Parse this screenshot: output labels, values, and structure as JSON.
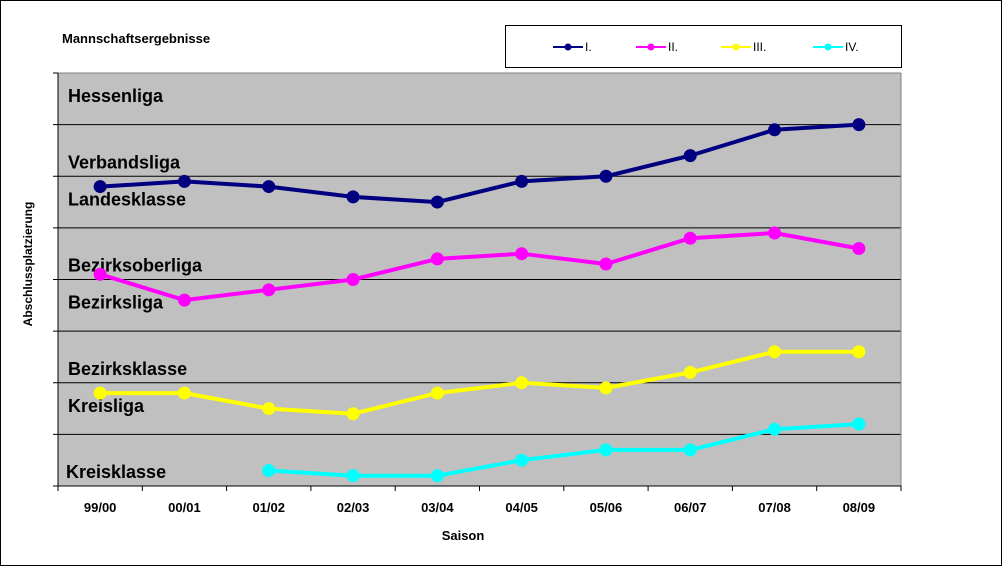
{
  "chart_data": {
    "type": "line",
    "title": "Mannschaftsergebnisse",
    "xlabel": "Saison",
    "ylabel": "Abschlussplatzierung",
    "categories": [
      "99/00",
      "00/01",
      "01/02",
      "02/03",
      "03/04",
      "04/05",
      "05/06",
      "06/07",
      "07/08",
      "08/09"
    ],
    "ylim": [
      0,
      8
    ],
    "grid": true,
    "legend_position": "top-right",
    "bands": [
      "Hessenliga",
      "Verbandsliga",
      "Landesklasse",
      "Bezirksoberliga",
      "Bezirksliga",
      "Bezirksklasse",
      "Kreisliga",
      "Kreisklasse"
    ],
    "series": [
      {
        "name": "I.",
        "color": "#000080",
        "values": [
          5.8,
          5.9,
          5.8,
          5.6,
          5.5,
          5.9,
          6.0,
          6.4,
          6.9,
          7.0
        ]
      },
      {
        "name": "II.",
        "color": "#ff00ff",
        "values": [
          4.1,
          3.6,
          3.8,
          4.0,
          4.4,
          4.5,
          4.3,
          4.8,
          4.9,
          4.6
        ]
      },
      {
        "name": "III.",
        "color": "#ffff00",
        "values": [
          1.8,
          1.8,
          1.5,
          1.4,
          1.8,
          2.0,
          1.9,
          2.2,
          2.6,
          2.6
        ]
      },
      {
        "name": "IV.",
        "color": "#00ffff",
        "values": [
          null,
          null,
          0.3,
          0.2,
          0.2,
          0.5,
          0.7,
          0.7,
          1.1,
          1.2
        ]
      }
    ]
  }
}
